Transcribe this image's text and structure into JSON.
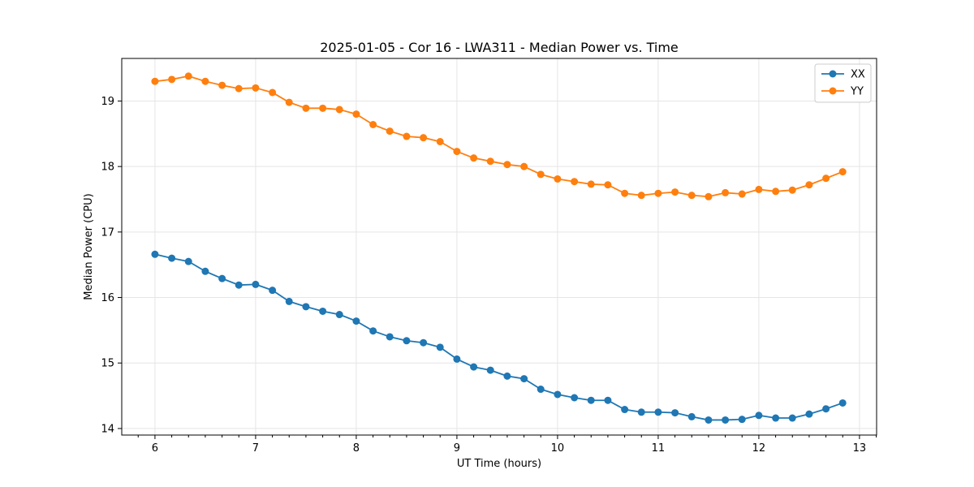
{
  "chart_data": {
    "type": "line",
    "title": "2025-01-05 - Cor 16 - LWA311 - Median Power vs. Time",
    "xlabel": "UT Time (hours)",
    "ylabel": "Median Power (CPU)",
    "xlim": [
      5.67,
      13.17
    ],
    "ylim": [
      13.9,
      19.65
    ],
    "xticks": [
      6,
      7,
      8,
      9,
      10,
      11,
      12,
      13
    ],
    "yticks": [
      14,
      15,
      16,
      17,
      18,
      19
    ],
    "grid": true,
    "legend_position": "top-right",
    "x": [
      6.0,
      6.167,
      6.333,
      6.5,
      6.667,
      6.833,
      7.0,
      7.167,
      7.333,
      7.5,
      7.667,
      7.833,
      8.0,
      8.167,
      8.333,
      8.5,
      8.667,
      8.833,
      9.0,
      9.167,
      9.333,
      9.5,
      9.667,
      9.833,
      10.0,
      10.167,
      10.333,
      10.5,
      10.667,
      10.833,
      11.0,
      11.167,
      11.333,
      11.5,
      11.667,
      11.833,
      12.0,
      12.167,
      12.333,
      12.5,
      12.667,
      12.833
    ],
    "series": [
      {
        "name": "XX",
        "color": "#1f77b4",
        "values": [
          16.66,
          16.6,
          16.55,
          16.4,
          16.29,
          16.19,
          16.2,
          16.11,
          15.94,
          15.86,
          15.79,
          15.74,
          15.64,
          15.49,
          15.4,
          15.34,
          15.31,
          15.24,
          15.06,
          14.94,
          14.89,
          14.8,
          14.76,
          14.6,
          14.52,
          14.47,
          14.43,
          14.43,
          14.29,
          14.25,
          14.25,
          14.24,
          14.18,
          14.13,
          14.13,
          14.14,
          14.2,
          14.16,
          14.16,
          14.22,
          14.3,
          14.39
        ]
      },
      {
        "name": "YY",
        "color": "#ff7f0e",
        "values": [
          19.3,
          19.33,
          19.38,
          19.3,
          19.24,
          19.19,
          19.2,
          19.13,
          18.98,
          18.89,
          18.89,
          18.87,
          18.8,
          18.64,
          18.54,
          18.46,
          18.44,
          18.38,
          18.23,
          18.13,
          18.08,
          18.03,
          18.0,
          17.88,
          17.81,
          17.77,
          17.73,
          17.72,
          17.59,
          17.56,
          17.59,
          17.61,
          17.56,
          17.54,
          17.6,
          17.58,
          17.65,
          17.62,
          17.64,
          17.72,
          17.82,
          17.92
        ]
      }
    ]
  }
}
